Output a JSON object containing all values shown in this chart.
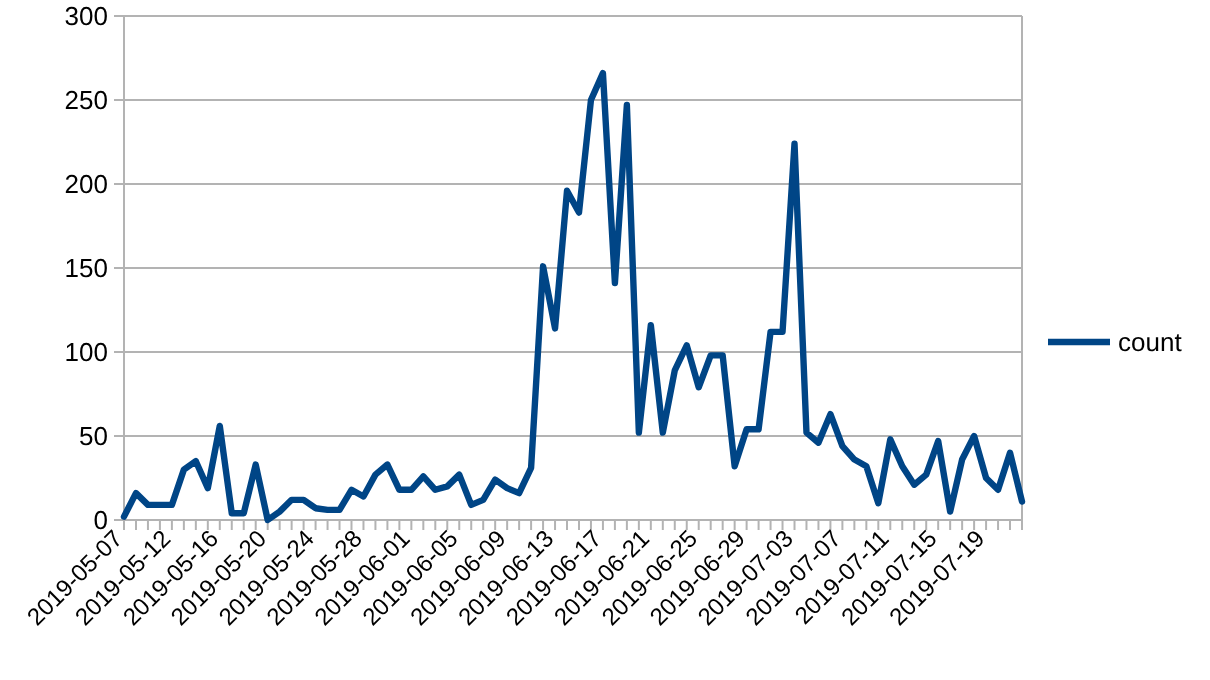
{
  "chart_data": {
    "type": "line",
    "categories": [
      "2019-05-07",
      null,
      null,
      null,
      "2019-05-12",
      null,
      null,
      null,
      "2019-05-16",
      null,
      null,
      null,
      "2019-05-20",
      null,
      null,
      null,
      "2019-05-24",
      null,
      null,
      null,
      "2019-05-28",
      null,
      null,
      null,
      "2019-06-01",
      null,
      null,
      null,
      "2019-06-05",
      null,
      null,
      null,
      "2019-06-09",
      null,
      null,
      null,
      "2019-06-13",
      null,
      null,
      null,
      "2019-06-17",
      null,
      null,
      null,
      "2019-06-21",
      null,
      null,
      null,
      "2019-06-25",
      null,
      null,
      null,
      "2019-06-29",
      null,
      null,
      null,
      "2019-07-03",
      null,
      null,
      null,
      "2019-07-07",
      null,
      null,
      null,
      "2019-07-11",
      null,
      null,
      null,
      "2019-07-15",
      null,
      null,
      null,
      "2019-07-19",
      null,
      null,
      null
    ],
    "series": [
      {
        "name": "count",
        "color": "#004586",
        "values": [
          2,
          16,
          9,
          9,
          9,
          30,
          35,
          19,
          56,
          4,
          4,
          33,
          0,
          5,
          12,
          12,
          7,
          6,
          6,
          18,
          14,
          27,
          33,
          18,
          18,
          26,
          18,
          20,
          27,
          9,
          12,
          24,
          19,
          16,
          31,
          151,
          114,
          196,
          183,
          250,
          266,
          141,
          247,
          52,
          116,
          52,
          89,
          104,
          79,
          98,
          98,
          32,
          54,
          54,
          112,
          112,
          224,
          52,
          46,
          63,
          44,
          36,
          32,
          10,
          48,
          32,
          21,
          27,
          47,
          5,
          36,
          50,
          25,
          18,
          40,
          11
        ]
      }
    ],
    "ylim": [
      0,
      300
    ],
    "yticks": [
      0,
      50,
      100,
      150,
      200,
      250,
      300
    ],
    "grid": "y",
    "legend": "right",
    "line_style": "solid",
    "marker": "none"
  }
}
